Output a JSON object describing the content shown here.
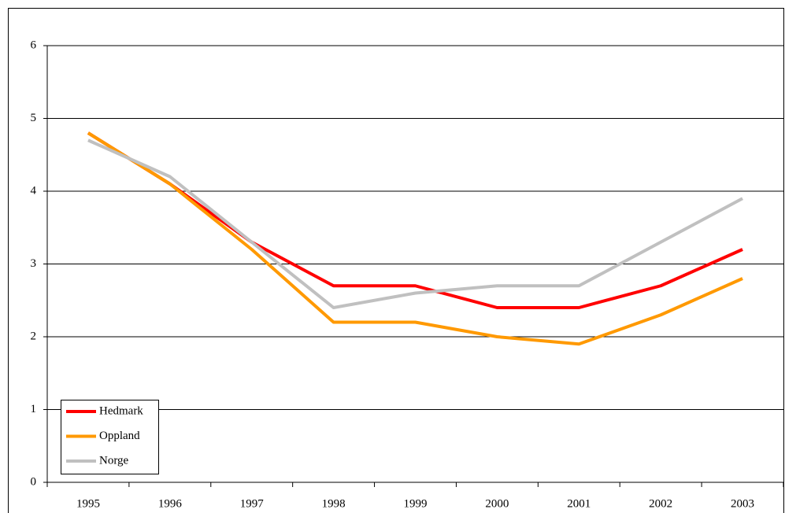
{
  "chart_data": {
    "type": "line",
    "categories": [
      "1995",
      "1996",
      "1997",
      "1998",
      "1999",
      "2000",
      "2001",
      "2002",
      "2003"
    ],
    "series": [
      {
        "name": "Hedmark",
        "color": "#ff0000",
        "values": [
          4.8,
          4.1,
          3.3,
          2.7,
          2.7,
          2.4,
          2.4,
          2.7,
          3.2
        ]
      },
      {
        "name": "Oppland",
        "color": "#ff9900",
        "values": [
          4.8,
          4.1,
          3.2,
          2.2,
          2.2,
          2.0,
          1.9,
          2.3,
          2.8
        ]
      },
      {
        "name": "Norge",
        "color": "#c0c0c0",
        "values": [
          4.7,
          4.2,
          3.3,
          2.4,
          2.6,
          2.7,
          2.7,
          3.3,
          3.9
        ]
      }
    ],
    "ylim": [
      0,
      6
    ],
    "yticks": [
      0,
      1,
      2,
      3,
      4,
      5,
      6
    ],
    "grid": true,
    "legend": "lower-left"
  }
}
